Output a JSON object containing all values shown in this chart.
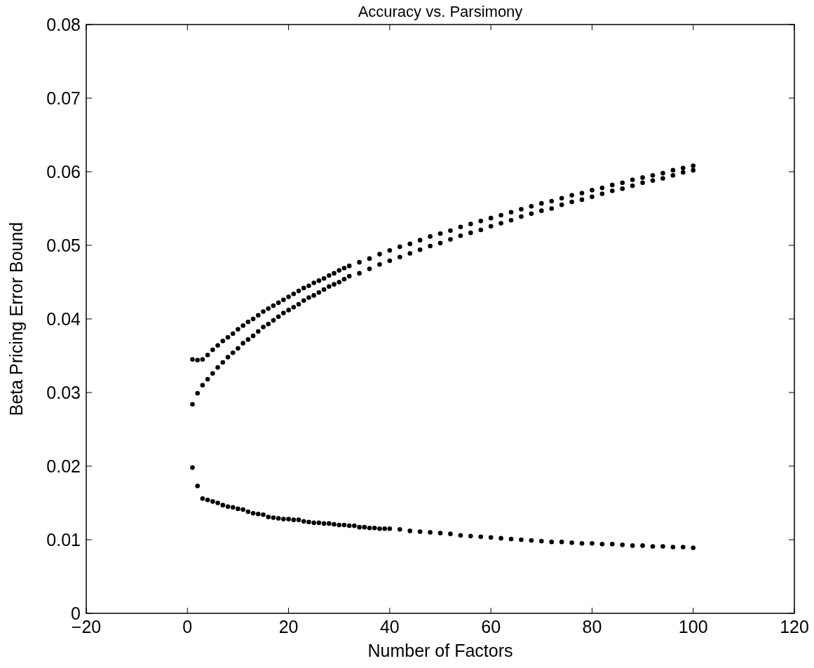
{
  "chart_data": {
    "type": "scatter",
    "title": "Accuracy vs. Parsimony",
    "xlabel": "Number of Factors",
    "ylabel": "Beta Pricing Error Bound",
    "xlim": [
      -20,
      120
    ],
    "xticks": [
      -20,
      0,
      20,
      40,
      60,
      80,
      100,
      120
    ],
    "ylim": [
      0,
      0.08
    ],
    "yticks": [
      0,
      0.01,
      0.02,
      0.03,
      0.04,
      0.05,
      0.06,
      0.07,
      0.08
    ],
    "marker": "circle",
    "series": [
      {
        "color": "#000000",
        "x": [
          1,
          2,
          3,
          4,
          5,
          6,
          7,
          8,
          9,
          10,
          11,
          12,
          13,
          14,
          15,
          16,
          17,
          18,
          19,
          20,
          21,
          22,
          23,
          24,
          25,
          26,
          27,
          28,
          29,
          30,
          31,
          32,
          34,
          36,
          38,
          40,
          42,
          44,
          46,
          48,
          50,
          52,
          54,
          56,
          58,
          60,
          62,
          64,
          66,
          68,
          70,
          72,
          74,
          76,
          78,
          80,
          82,
          84,
          86,
          88,
          90,
          92,
          94,
          96,
          98,
          100
        ],
        "values": [
          0.0345,
          0.0344,
          0.0345,
          0.0351,
          0.0358,
          0.0364,
          0.037,
          0.0375,
          0.038,
          0.0386,
          0.0391,
          0.0396,
          0.04,
          0.0405,
          0.041,
          0.0414,
          0.0418,
          0.0422,
          0.0426,
          0.043,
          0.0434,
          0.0438,
          0.0442,
          0.0445,
          0.0449,
          0.0452,
          0.0455,
          0.0459,
          0.0462,
          0.0466,
          0.0469,
          0.0472,
          0.0477,
          0.0482,
          0.0488,
          0.0493,
          0.0498,
          0.0502,
          0.0507,
          0.0512,
          0.0516,
          0.052,
          0.0525,
          0.0529,
          0.0533,
          0.0537,
          0.0541,
          0.0545,
          0.0549,
          0.0553,
          0.0557,
          0.056,
          0.0564,
          0.0568,
          0.0571,
          0.0575,
          0.0578,
          0.0582,
          0.0585,
          0.0589,
          0.0592,
          0.0595,
          0.0598,
          0.0602,
          0.0605,
          0.0608
        ]
      },
      {
        "color": "#000000",
        "x": [
          1,
          2,
          3,
          4,
          5,
          6,
          7,
          8,
          9,
          10,
          11,
          12,
          13,
          14,
          15,
          16,
          17,
          18,
          19,
          20,
          21,
          22,
          23,
          24,
          25,
          26,
          27,
          28,
          29,
          30,
          31,
          32,
          34,
          36,
          38,
          40,
          42,
          44,
          46,
          48,
          50,
          52,
          54,
          56,
          58,
          60,
          62,
          64,
          66,
          68,
          70,
          72,
          74,
          76,
          78,
          80,
          82,
          84,
          86,
          88,
          90,
          92,
          94,
          96,
          98,
          100
        ],
        "values": [
          0.0284,
          0.0299,
          0.031,
          0.0318,
          0.0326,
          0.0334,
          0.0341,
          0.0348,
          0.0354,
          0.036,
          0.0367,
          0.0372,
          0.0377,
          0.0383,
          0.0389,
          0.0393,
          0.0398,
          0.0403,
          0.0408,
          0.0412,
          0.0416,
          0.042,
          0.0425,
          0.0429,
          0.0432,
          0.0436,
          0.044,
          0.0444,
          0.0447,
          0.045,
          0.0454,
          0.0458,
          0.0462,
          0.0468,
          0.0474,
          0.0479,
          0.0484,
          0.0489,
          0.0494,
          0.0499,
          0.0503,
          0.0508,
          0.0513,
          0.0517,
          0.0521,
          0.0526,
          0.053,
          0.0534,
          0.0539,
          0.0543,
          0.0547,
          0.055,
          0.0555,
          0.0559,
          0.0562,
          0.0566,
          0.057,
          0.0574,
          0.0577,
          0.0581,
          0.0585,
          0.0588,
          0.0591,
          0.0595,
          0.0599,
          0.0602
        ]
      },
      {
        "color": "#000000",
        "x": [
          1,
          2,
          3,
          4,
          5,
          6,
          7,
          8,
          9,
          10,
          11,
          12,
          13,
          14,
          15,
          16,
          17,
          18,
          19,
          20,
          21,
          22,
          23,
          24,
          25,
          26,
          27,
          28,
          29,
          30,
          31,
          32,
          33,
          34,
          35,
          36,
          37,
          38,
          39,
          40,
          42,
          44,
          46,
          48,
          50,
          52,
          54,
          56,
          58,
          60,
          62,
          64,
          66,
          68,
          70,
          72,
          74,
          76,
          78,
          80,
          82,
          84,
          86,
          88,
          90,
          92,
          94,
          96,
          98,
          100
        ],
        "values": [
          0.0198,
          0.0173,
          0.0156,
          0.0154,
          0.0152,
          0.015,
          0.0147,
          0.0145,
          0.0144,
          0.0142,
          0.0141,
          0.0138,
          0.0136,
          0.0135,
          0.0134,
          0.0131,
          0.013,
          0.0129,
          0.0128,
          0.0128,
          0.0127,
          0.0127,
          0.0125,
          0.0124,
          0.0123,
          0.0123,
          0.0122,
          0.0122,
          0.0121,
          0.012,
          0.012,
          0.0119,
          0.0119,
          0.0117,
          0.0117,
          0.0116,
          0.0116,
          0.0115,
          0.0115,
          0.0115,
          0.0114,
          0.0112,
          0.0111,
          0.011,
          0.0109,
          0.0108,
          0.0106,
          0.0105,
          0.0104,
          0.0103,
          0.0102,
          0.0101,
          0.01,
          0.0099,
          0.0098,
          0.0097,
          0.0097,
          0.0096,
          0.0095,
          0.0095,
          0.0094,
          0.0094,
          0.0093,
          0.0092,
          0.0092,
          0.0091,
          0.0091,
          0.009,
          0.009,
          0.0089
        ]
      }
    ]
  }
}
